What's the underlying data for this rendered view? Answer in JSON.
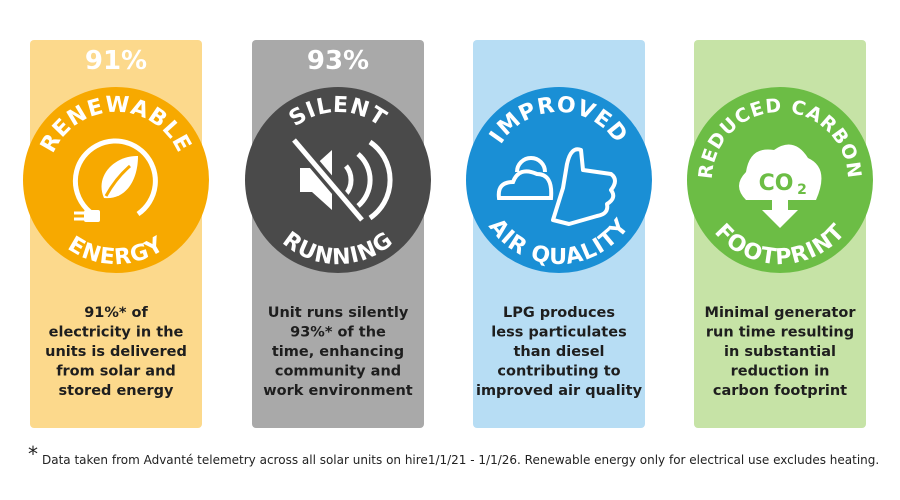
{
  "cards": [
    {
      "stat": "91%",
      "arc_top": "RENEWABLE",
      "arc_bottom": "ENERGY",
      "description": [
        "91%* of",
        "electricity in the",
        "units is delivered",
        "from solar and",
        "stored energy"
      ]
    },
    {
      "stat": "93%",
      "arc_top": "SILENT",
      "arc_bottom": "RUNNING",
      "description": [
        "Unit runs silently",
        "93%* of the",
        "time, enhancing",
        "community and",
        "work environment"
      ]
    },
    {
      "arc_top": "IMPROVED",
      "arc_bottom": "AIR QUALITY",
      "description": [
        "LPG produces",
        "less particulates",
        "than diesel",
        "contributing to",
        "improved air quality"
      ]
    },
    {
      "arc_top": "REDUCED CARBON",
      "arc_bottom": "FOOTPRINT",
      "icon_label": {
        "main": "CO",
        "sub": "2"
      },
      "description": [
        "Minimal generator",
        "run time resulting",
        "in substantial",
        "reduction in",
        "carbon footprint"
      ]
    }
  ],
  "footnote": {
    "marker": "*",
    "text": "Data taken from Advanté telemetry across all solar units on hire1/1/21 - 1/1/26. Renewable energy only for electrical use excludes heating."
  }
}
